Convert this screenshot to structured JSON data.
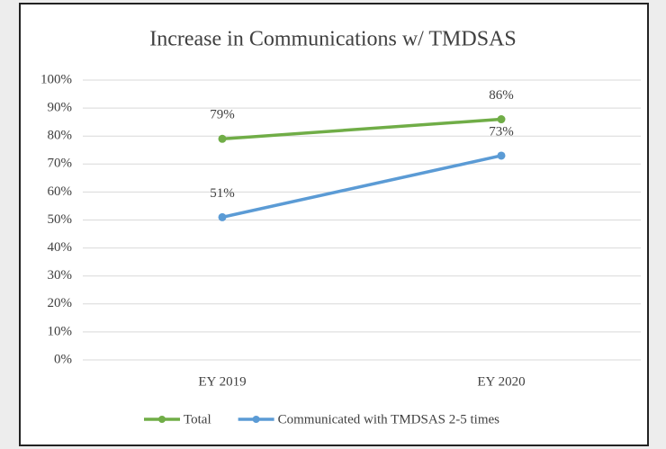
{
  "chart_data": {
    "type": "line",
    "title": "Increase in Communications w/ TMDSAS",
    "categories": [
      "EY 2019",
      "EY 2020"
    ],
    "series": [
      {
        "name": "Total",
        "color": "#70ad47",
        "values": [
          79,
          86
        ],
        "value_labels": [
          "79%",
          "86%"
        ]
      },
      {
        "name": "Communicated with TMDSAS 2-5 times",
        "color": "#5b9bd5",
        "values": [
          51,
          73
        ],
        "value_labels": [
          "51%",
          "73%"
        ]
      }
    ],
    "ylim": [
      0,
      100
    ],
    "yticks": [
      {
        "value": 0,
        "label": "0%"
      },
      {
        "value": 10,
        "label": "10%"
      },
      {
        "value": 20,
        "label": "20%"
      },
      {
        "value": 30,
        "label": "30%"
      },
      {
        "value": 40,
        "label": "40%"
      },
      {
        "value": 50,
        "label": "50%"
      },
      {
        "value": 60,
        "label": "60%"
      },
      {
        "value": 70,
        "label": "70%"
      },
      {
        "value": 80,
        "label": "80%"
      },
      {
        "value": 90,
        "label": "90%"
      },
      {
        "value": 100,
        "label": "100%"
      }
    ],
    "grid": true,
    "legend": "bottom"
  }
}
